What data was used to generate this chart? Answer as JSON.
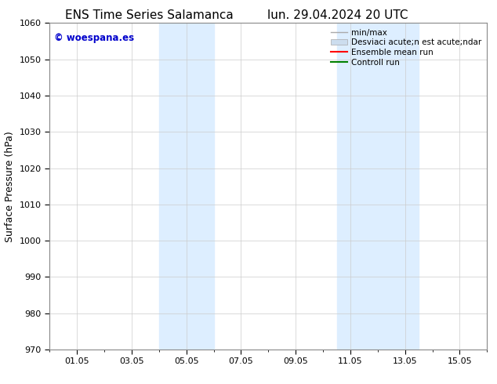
{
  "title_left": "ENS Time Series Salamanca",
  "title_right": "lun. 29.04.2024 20 UTC",
  "ylabel": "Surface Pressure (hPa)",
  "ylim": [
    970,
    1060
  ],
  "yticks": [
    970,
    980,
    990,
    1000,
    1010,
    1020,
    1030,
    1040,
    1050,
    1060
  ],
  "xlim_start": 0,
  "xlim_end": 16,
  "xtick_positions": [
    1,
    3,
    5,
    7,
    9,
    11,
    13,
    15
  ],
  "xtick_labels": [
    "01.05",
    "03.05",
    "05.05",
    "07.05",
    "09.05",
    "11.05",
    "13.05",
    "15.05"
  ],
  "shaded_regions": [
    {
      "xmin": 4.0,
      "xmax": 6.0
    },
    {
      "xmin": 10.5,
      "xmax": 13.5
    }
  ],
  "shaded_color": "#ddeeff",
  "watermark_text": "© woespana.es",
  "watermark_color": "#0000cc",
  "legend_entries": [
    {
      "label": "min/max",
      "color": "#aaaaaa",
      "lw": 1.0,
      "ls": "-",
      "type": "line"
    },
    {
      "label": "Desviaci acute;n est acute;ndar",
      "color": "#ccddee",
      "lw": 8,
      "ls": "-",
      "type": "thick"
    },
    {
      "label": "Ensemble mean run",
      "color": "red",
      "lw": 1.5,
      "ls": "-",
      "type": "line"
    },
    {
      "label": "Controll run",
      "color": "green",
      "lw": 1.5,
      "ls": "-",
      "type": "line"
    }
  ],
  "background_color": "#ffffff",
  "grid_color": "#cccccc",
  "title_fontsize": 11,
  "axis_fontsize": 9,
  "tick_fontsize": 8,
  "legend_fontsize": 7.5
}
